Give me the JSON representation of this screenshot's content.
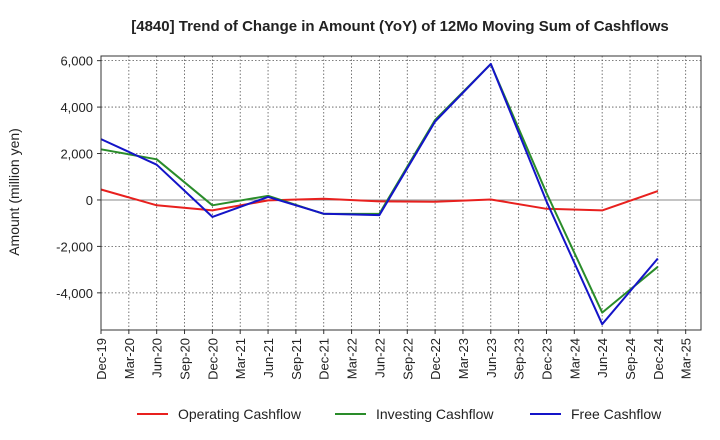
{
  "chart_data": {
    "type": "line",
    "title": "[4840]  Trend of Change in Amount (YoY) of 12Mo Moving Sum of Cashflows",
    "xlabel": "",
    "ylabel": "Amount (million yen)",
    "ylim": [
      -5600,
      6200
    ],
    "yticks": [
      6000,
      4000,
      2000,
      0,
      -2000,
      -4000
    ],
    "ytick_labels": [
      "6,000",
      "4,000",
      "2,000",
      "0",
      "-2,000",
      "-4,000"
    ],
    "categories": [
      "Dec-19",
      "Mar-20",
      "Jun-20",
      "Sep-20",
      "Dec-20",
      "Mar-21",
      "Jun-21",
      "Sep-21",
      "Dec-21",
      "Mar-22",
      "Jun-22",
      "Sep-22",
      "Dec-22",
      "Mar-23",
      "Jun-23",
      "Sep-23",
      "Dec-23",
      "Mar-24",
      "Jun-24",
      "Sep-24",
      "Dec-24",
      "Mar-25"
    ],
    "grid": true,
    "legend_position": "bottom",
    "series": [
      {
        "name": "Operating Cashflow",
        "color": "#e8201e",
        "values": [
          450,
          null,
          -230,
          null,
          -450,
          null,
          -20,
          null,
          50,
          null,
          -60,
          null,
          -80,
          null,
          20,
          null,
          -380,
          null,
          -450,
          null,
          380,
          null
        ]
      },
      {
        "name": "Investing Cashflow",
        "color": "#2a8c2a",
        "values": [
          2180,
          null,
          1750,
          null,
          -230,
          null,
          180,
          null,
          -600,
          null,
          -590,
          null,
          3450,
          null,
          5850,
          null,
          300,
          null,
          -4850,
          null,
          -2880,
          null
        ]
      },
      {
        "name": "Free Cashflow",
        "color": "#1414c8",
        "values": [
          2620,
          null,
          1520,
          null,
          -730,
          null,
          130,
          null,
          -590,
          null,
          -650,
          null,
          3380,
          null,
          5860,
          null,
          -60,
          null,
          -5350,
          null,
          -2520,
          null
        ]
      }
    ]
  }
}
